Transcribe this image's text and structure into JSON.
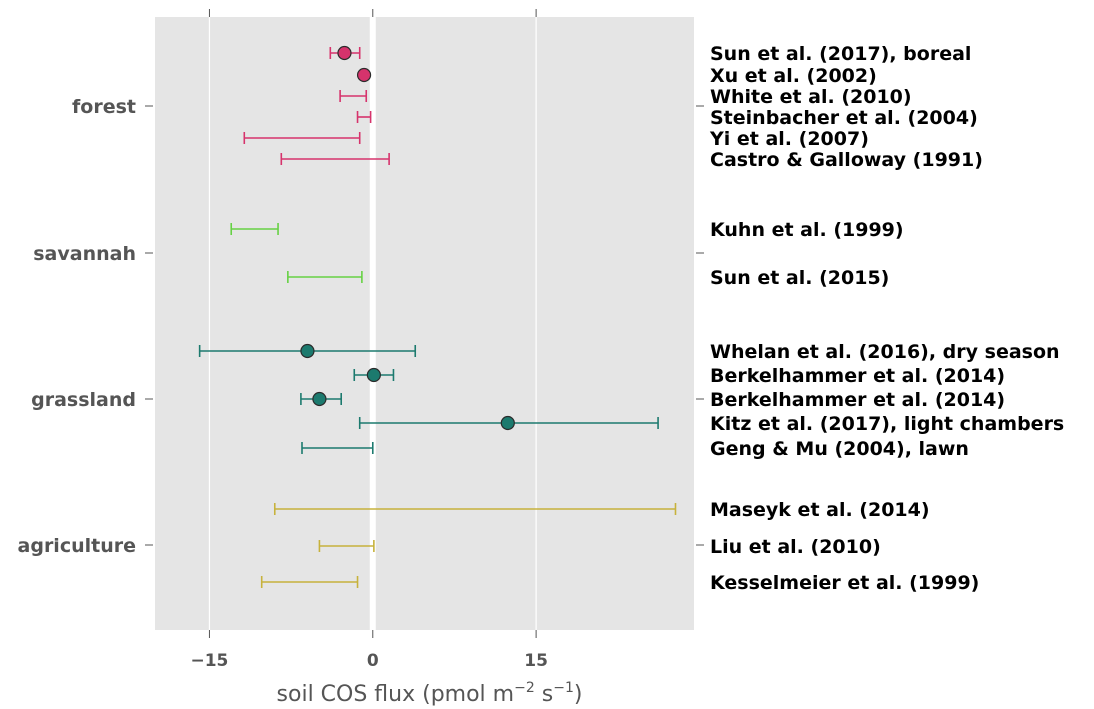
{
  "chart_data": {
    "type": "errorbar",
    "xlabel_prefix": "soil COS flux (pmol m",
    "xlabel_exp1": "−2",
    "xlabel_mid": " s",
    "xlabel_exp2": "−1",
    "xlabel_suffix": ")",
    "xlim": [
      -20,
      29.5
    ],
    "xticks": [
      -15,
      0,
      15
    ],
    "xtick_labels": [
      "−15",
      "0",
      "15"
    ],
    "grid": true,
    "biomes": [
      {
        "name": "forest",
        "color": "#d6336c"
      },
      {
        "name": "savannah",
        "color": "#66d144"
      },
      {
        "name": "grassland",
        "color": "#1c7a6e"
      },
      {
        "name": "agriculture",
        "color": "#c7b23c"
      }
    ],
    "studies": [
      {
        "label": "Sun et al. (2017), boreal",
        "biome": "forest",
        "xmin": -3.9,
        "xmax": -1.2,
        "point": -2.6
      },
      {
        "label": "Xu et al. (2002)",
        "biome": "forest",
        "xmin": null,
        "xmax": null,
        "point": -0.8
      },
      {
        "label": "White et al. (2010)",
        "biome": "forest",
        "xmin": -3.0,
        "xmax": -0.6,
        "point": null
      },
      {
        "label": "Steinbacher et al. (2004)",
        "biome": "forest",
        "xmin": -1.4,
        "xmax": -0.2,
        "point": null
      },
      {
        "label": "Yi et al. (2007)",
        "biome": "forest",
        "xmin": -11.8,
        "xmax": -1.2,
        "point": null
      },
      {
        "label": "Castro & Galloway (1991)",
        "biome": "forest",
        "xmin": -8.4,
        "xmax": 1.5,
        "point": null
      },
      {
        "label": "Kuhn et al. (1999)",
        "biome": "savannah",
        "xmin": -13.0,
        "xmax": -8.7,
        "point": null
      },
      {
        "label": "Sun et al.  (2015)",
        "biome": "savannah",
        "xmin": -7.8,
        "xmax": -1.0,
        "point": null
      },
      {
        "label": "Whelan et al. (2016), dry season",
        "biome": "grassland",
        "xmin": -15.9,
        "xmax": 3.9,
        "point": -6.0
      },
      {
        "label": "Berkelhammer et al. (2014)",
        "biome": "grassland",
        "xmin": -1.7,
        "xmax": 1.9,
        "point": 0.1
      },
      {
        "label": "Berkelhammer et al. (2014)",
        "biome": "grassland",
        "xmin": -6.6,
        "xmax": -2.9,
        "point": -4.9
      },
      {
        "label": "Kitz et al. (2017), light chambers",
        "biome": "grassland",
        "xmin": -1.2,
        "xmax": 26.2,
        "point": 12.4
      },
      {
        "label": "Geng & Mu (2004), lawn",
        "biome": "grassland",
        "xmin": -6.5,
        "xmax": 0.0,
        "point": null
      },
      {
        "label": "Maseyk et al. (2014)",
        "biome": "agriculture",
        "xmin": -9.0,
        "xmax": 27.8,
        "point": null
      },
      {
        "label": "Liu et al. (2010)",
        "biome": "agriculture",
        "xmin": -4.9,
        "xmax": 0.1,
        "point": null
      },
      {
        "label": "Kesselmeier et al. (1999)",
        "biome": "agriculture",
        "xmin": -10.2,
        "xmax": -1.4,
        "point": null
      }
    ]
  }
}
